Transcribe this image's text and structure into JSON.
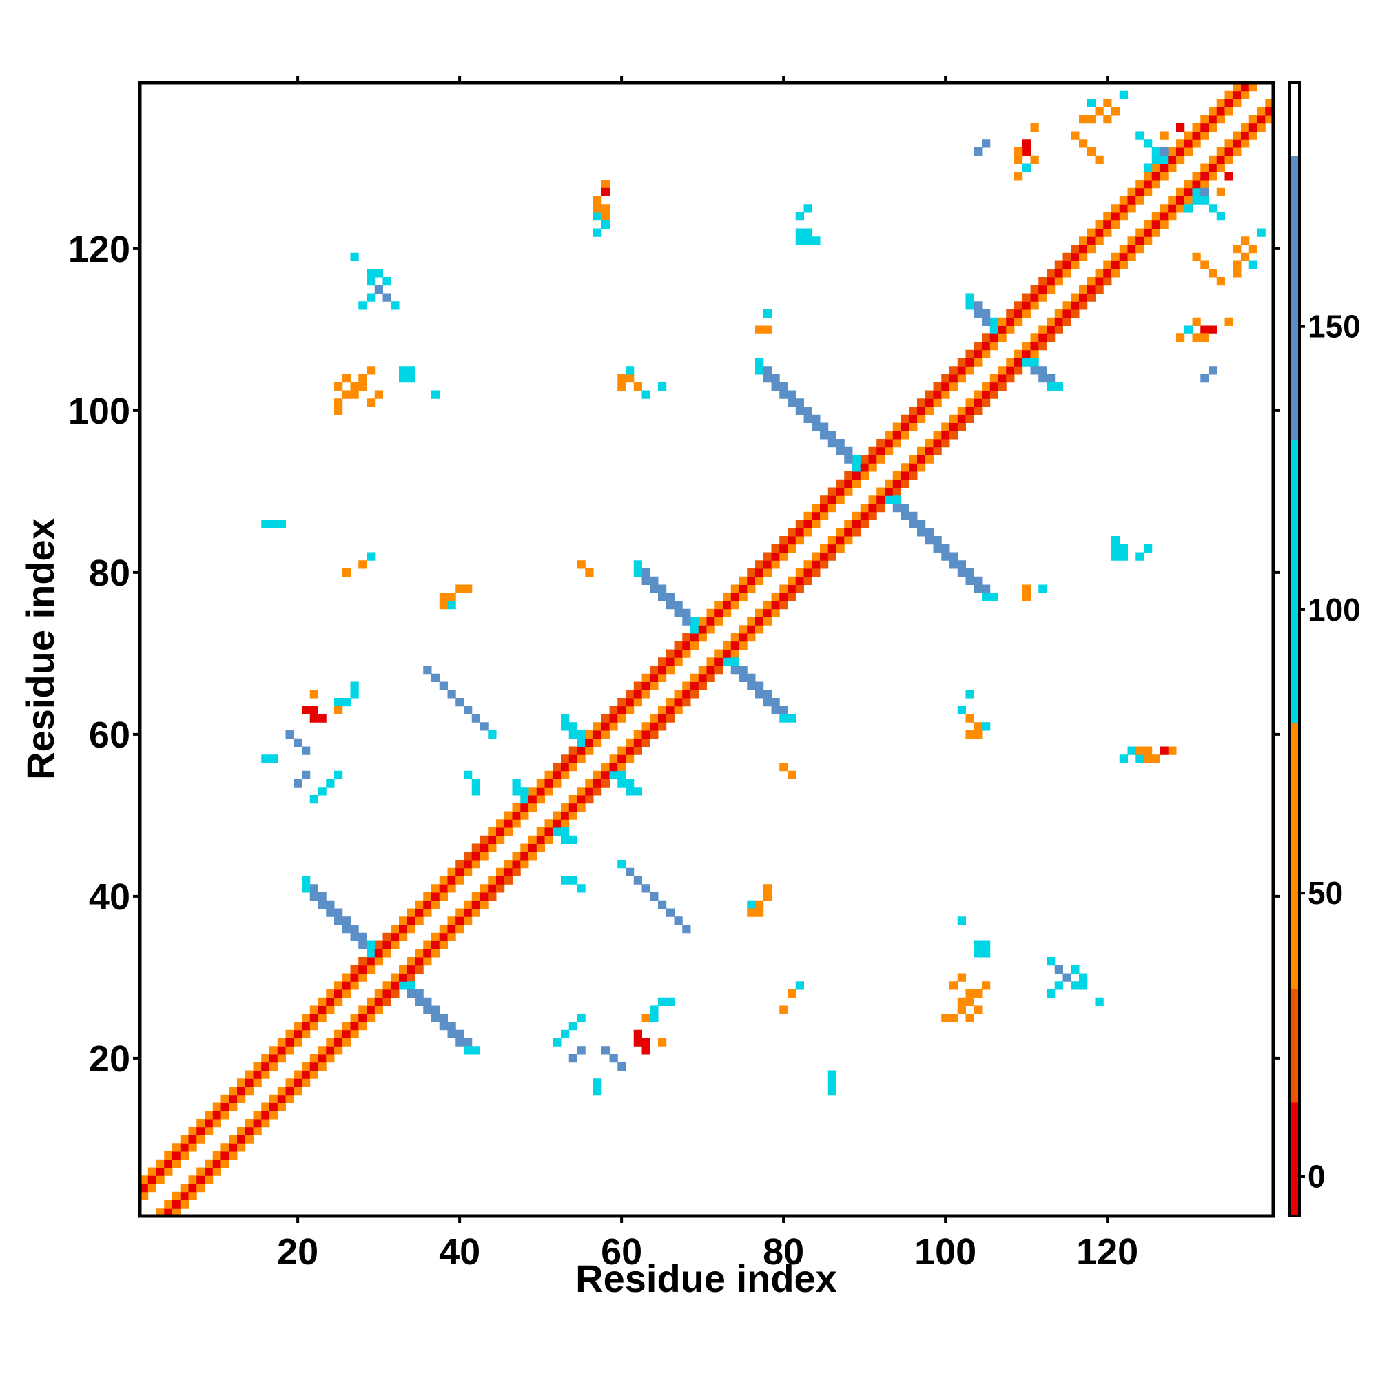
{
  "chart_data": {
    "type": "heatmap",
    "title": "",
    "xlabel": "Residue index",
    "ylabel": "Residue index",
    "xlim": [
      1,
      140
    ],
    "ylim": [
      1,
      140
    ],
    "x_ticks": [
      20,
      40,
      60,
      80,
      100,
      120
    ],
    "y_ticks": [
      20,
      40,
      60,
      80,
      100,
      120
    ],
    "colorbar": {
      "ticks": [
        0,
        50,
        100,
        150
      ],
      "range": [
        -7,
        193
      ],
      "bands": [
        {
          "from": -7,
          "to": 13,
          "color": "#e60000"
        },
        {
          "from": 13,
          "to": 33,
          "color": "#ee5500"
        },
        {
          "from": 33,
          "to": 80,
          "color": "#ff8c00"
        },
        {
          "from": 80,
          "to": 130,
          "color": "#00d5e5"
        },
        {
          "from": 130,
          "to": 180,
          "color": "#5b8fc8"
        },
        {
          "from": 180,
          "to": 193,
          "color": "#ffffff"
        }
      ]
    },
    "symmetric": true,
    "min_separation": 2,
    "diagonal": {
      "from": 1,
      "to": 140,
      "offset_values": [
        {
          "offset": 2,
          "value": 40
        },
        {
          "offset": 3,
          "value": 5
        },
        {
          "offset": 4,
          "value": 45
        }
      ]
    },
    "helix_segments": [
      {
        "from": 27,
        "to": 31
      },
      {
        "from": 40,
        "to": 43
      },
      {
        "from": 52,
        "to": 55
      },
      {
        "from": 58,
        "to": 62
      },
      {
        "from": 64,
        "to": 68
      },
      {
        "from": 76,
        "to": 82
      },
      {
        "from": 85,
        "to": 92
      },
      {
        "from": 95,
        "to": 106
      },
      {
        "from": 108,
        "to": 116
      }
    ],
    "antiparallel_strands": [
      {
        "center": 31,
        "length": 10,
        "width": 2,
        "value": 150,
        "edge_value": 100
      },
      {
        "center": 50,
        "length": 3,
        "width": 2,
        "value": 100,
        "edge_value": 100
      },
      {
        "center": 57,
        "length": 4,
        "width": 2,
        "value": 100,
        "edge_value": 100
      },
      {
        "center": 71,
        "length": 9,
        "width": 2,
        "value": 150,
        "edge_value": 100
      },
      {
        "center": 91,
        "length": 14,
        "width": 2,
        "value": 155,
        "edge_value": 100
      },
      {
        "center": 108,
        "length": 5,
        "width": 2,
        "value": 150,
        "edge_value": 100
      },
      {
        "center": 129,
        "length": 5,
        "width": 1,
        "value": 100,
        "edge_value": 100
      }
    ],
    "contacts": [
      {
        "i": 22,
        "j": 52,
        "value": 100
      },
      {
        "i": 23,
        "j": 53,
        "value": 100
      },
      {
        "i": 24,
        "j": 54,
        "value": 100
      },
      {
        "i": 25,
        "j": 55,
        "value": 100
      },
      {
        "i": 20,
        "j": 54,
        "value": 150
      },
      {
        "i": 21,
        "j": 55,
        "value": 150
      },
      {
        "i": 16,
        "j": 57,
        "value": 100
      },
      {
        "i": 17,
        "j": 57,
        "value": 100
      },
      {
        "i": 19,
        "j": 60,
        "value": 150
      },
      {
        "i": 20,
        "j": 59,
        "value": 150
      },
      {
        "i": 21,
        "j": 58,
        "value": 150
      },
      {
        "i": 16,
        "j": 86,
        "value": 100
      },
      {
        "i": 17,
        "j": 86,
        "value": 100
      },
      {
        "i": 28,
        "j": 113,
        "value": 100
      },
      {
        "i": 29,
        "j": 114,
        "value": 100
      },
      {
        "i": 30,
        "j": 115,
        "value": 150
      },
      {
        "i": 31,
        "j": 116,
        "value": 100
      },
      {
        "i": 29,
        "j": 117,
        "value": 100
      },
      {
        "i": 27,
        "j": 119,
        "value": 100
      },
      {
        "i": 27,
        "j": 102,
        "value": 45
      },
      {
        "i": 28,
        "j": 103,
        "value": 40
      },
      {
        "i": 29,
        "j": 101,
        "value": 45
      },
      {
        "i": 26,
        "j": 104,
        "value": 40
      },
      {
        "i": 25,
        "j": 100,
        "value": 70
      },
      {
        "i": 30,
        "j": 102,
        "value": 40
      },
      {
        "i": 33,
        "j": 105,
        "value": 100
      },
      {
        "i": 34,
        "j": 104,
        "value": 100
      },
      {
        "i": 28,
        "j": 81,
        "value": 100
      },
      {
        "i": 26,
        "j": 80,
        "value": 70
      },
      {
        "i": 22,
        "j": 65,
        "value": 45
      },
      {
        "i": 21,
        "j": 63,
        "value": 10
      },
      {
        "i": 22,
        "j": 62,
        "value": 5
      },
      {
        "i": 25,
        "j": 64,
        "value": 100
      },
      {
        "i": 27,
        "j": 66,
        "value": 100
      },
      {
        "i": 38,
        "j": 77,
        "value": 45
      },
      {
        "i": 40,
        "j": 78,
        "value": 45
      },
      {
        "i": 39,
        "j": 76,
        "value": 100
      },
      {
        "i": 41,
        "j": 78,
        "value": 45
      },
      {
        "i": 41,
        "j": 55,
        "value": 100
      },
      {
        "i": 37,
        "j": 38,
        "value": 100
      },
      {
        "i": 53,
        "j": 42,
        "value": 100
      },
      {
        "i": 54,
        "j": 42,
        "value": 100
      },
      {
        "i": 57,
        "j": 126,
        "value": 70
      },
      {
        "i": 58,
        "j": 125,
        "value": 45
      },
      {
        "i": 57,
        "j": 124,
        "value": 100
      },
      {
        "i": 58,
        "j": 128,
        "value": 45
      },
      {
        "i": 57,
        "j": 122,
        "value": 45
      },
      {
        "i": 61,
        "j": 104,
        "value": 45
      },
      {
        "i": 62,
        "j": 103,
        "value": 70
      },
      {
        "i": 63,
        "j": 102,
        "value": 100
      },
      {
        "i": 65,
        "j": 103,
        "value": 100
      },
      {
        "i": 60,
        "j": 44,
        "value": 100
      },
      {
        "i": 61,
        "j": 43,
        "value": 150
      },
      {
        "i": 62,
        "j": 42,
        "value": 150
      },
      {
        "i": 63,
        "j": 41,
        "value": 150
      },
      {
        "i": 64,
        "j": 40,
        "value": 150
      },
      {
        "i": 65,
        "j": 39,
        "value": 150
      },
      {
        "i": 66,
        "j": 38,
        "value": 150
      },
      {
        "i": 67,
        "j": 37,
        "value": 150
      },
      {
        "i": 68,
        "j": 36,
        "value": 150
      },
      {
        "i": 64,
        "j": 26,
        "value": 100
      },
      {
        "i": 65,
        "j": 27,
        "value": 100
      },
      {
        "i": 63,
        "j": 25,
        "value": 45
      },
      {
        "i": 62,
        "j": 23,
        "value": 10
      },
      {
        "i": 63,
        "j": 22,
        "value": 10
      },
      {
        "i": 78,
        "j": 41,
        "value": 70
      },
      {
        "i": 77,
        "j": 39,
        "value": 45
      },
      {
        "i": 76,
        "j": 38,
        "value": 70
      },
      {
        "i": 82,
        "j": 29,
        "value": 100
      },
      {
        "i": 81,
        "j": 28,
        "value": 45
      },
      {
        "i": 86,
        "j": 18,
        "value": 100
      },
      {
        "i": 86,
        "j": 17,
        "value": 100
      },
      {
        "i": 80,
        "j": 56,
        "value": 45
      },
      {
        "i": 81,
        "j": 55,
        "value": 45
      },
      {
        "i": 83,
        "j": 125,
        "value": 100
      },
      {
        "i": 83,
        "j": 121,
        "value": 100
      },
      {
        "i": 84,
        "j": 121,
        "value": 100
      },
      {
        "i": 83,
        "j": 122,
        "value": 100
      },
      {
        "i": 77,
        "j": 110,
        "value": 70
      },
      {
        "i": 78,
        "j": 110,
        "value": 45
      },
      {
        "i": 78,
        "j": 112,
        "value": 100
      },
      {
        "i": 103,
        "j": 27,
        "value": 45
      },
      {
        "i": 104,
        "j": 28,
        "value": 70
      },
      {
        "i": 102,
        "j": 26,
        "value": 40
      },
      {
        "i": 105,
        "j": 29,
        "value": 45
      },
      {
        "i": 101,
        "j": 25,
        "value": 70
      },
      {
        "i": 103,
        "j": 25,
        "value": 70
      },
      {
        "i": 104,
        "j": 33,
        "value": 100
      },
      {
        "i": 105,
        "j": 34,
        "value": 100
      },
      {
        "i": 102,
        "j": 37,
        "value": 100
      },
      {
        "i": 113,
        "j": 32,
        "value": 100
      },
      {
        "i": 114,
        "j": 31,
        "value": 150
      },
      {
        "i": 115,
        "j": 30,
        "value": 150
      },
      {
        "i": 116,
        "j": 29,
        "value": 100
      },
      {
        "i": 117,
        "j": 30,
        "value": 100
      },
      {
        "i": 104,
        "j": 60,
        "value": 45
      },
      {
        "i": 105,
        "j": 61,
        "value": 100
      },
      {
        "i": 103,
        "j": 60,
        "value": 45
      },
      {
        "i": 121,
        "j": 82,
        "value": 100
      },
      {
        "i": 122,
        "j": 82,
        "value": 100
      },
      {
        "i": 124,
        "j": 82,
        "value": 100
      },
      {
        "i": 124,
        "j": 58,
        "value": 45
      },
      {
        "i": 125,
        "j": 57,
        "value": 70
      },
      {
        "i": 123,
        "j": 58,
        "value": 100
      },
      {
        "i": 127,
        "j": 58,
        "value": 10
      },
      {
        "i": 122,
        "j": 57,
        "value": 100
      },
      {
        "i": 109,
        "j": 131,
        "value": 45
      },
      {
        "i": 110,
        "j": 132,
        "value": 10
      },
      {
        "i": 111,
        "j": 131,
        "value": 45
      },
      {
        "i": 109,
        "j": 129,
        "value": 70
      },
      {
        "i": 105,
        "j": 133,
        "value": 150
      },
      {
        "i": 118,
        "j": 136,
        "value": 45
      },
      {
        "i": 119,
        "j": 137,
        "value": 70
      },
      {
        "i": 120,
        "j": 138,
        "value": 45
      },
      {
        "i": 121,
        "j": 137,
        "value": 45
      },
      {
        "i": 122,
        "j": 139,
        "value": 100
      },
      {
        "i": 120,
        "j": 136,
        "value": 70
      },
      {
        "i": 131,
        "j": 119,
        "value": 45
      },
      {
        "i": 132,
        "j": 118,
        "value": 70
      },
      {
        "i": 133,
        "j": 117,
        "value": 45
      },
      {
        "i": 134,
        "j": 116,
        "value": 70
      },
      {
        "i": 136,
        "j": 117,
        "value": 45
      },
      {
        "i": 138,
        "j": 118,
        "value": 100
      },
      {
        "i": 130,
        "j": 110,
        "value": 100
      },
      {
        "i": 132,
        "j": 109,
        "value": 45
      },
      {
        "i": 133,
        "j": 110,
        "value": 10
      },
      {
        "i": 135,
        "j": 111,
        "value": 45
      },
      {
        "i": 126,
        "j": 131,
        "value": 100
      },
      {
        "i": 127,
        "j": 132,
        "value": 150
      },
      {
        "i": 125,
        "j": 130,
        "value": 100
      },
      {
        "i": 127,
        "j": 134,
        "value": 45
      },
      {
        "i": 129,
        "j": 135,
        "value": 10
      },
      {
        "i": 132,
        "j": 104,
        "value": 150
      }
    ]
  }
}
